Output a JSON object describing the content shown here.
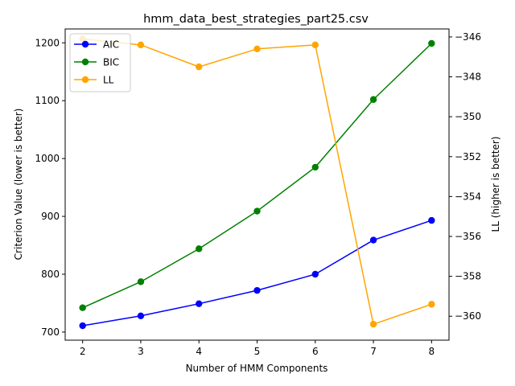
{
  "chart_data": {
    "type": "line",
    "title": "hmm_data_best_strategies_part25.csv",
    "xlabel": "Number of HMM Components",
    "ylabel_left": "Criterion Value (lower is better)",
    "ylabel_right": "LL (higher is better)",
    "x": [
      2,
      3,
      4,
      5,
      6,
      7,
      8
    ],
    "x_ticks": [
      "2",
      "3",
      "4",
      "5",
      "6",
      "7",
      "8"
    ],
    "xlim": [
      1.7,
      8.3
    ],
    "ylim_left": [
      686,
      1224
    ],
    "ylim_right": [
      -361.2,
      -345.6
    ],
    "left_ticks": [
      "700",
      "800",
      "900",
      "1000",
      "1100",
      "1200"
    ],
    "right_ticks": [
      "−346",
      "−348",
      "−350",
      "−352",
      "−354",
      "−356",
      "−358",
      "−360"
    ],
    "grid": false,
    "legend_position": "upper left",
    "series": [
      {
        "name": "AIC",
        "axis": "left",
        "color": "#0000ff",
        "values": [
          711,
          728,
          749,
          772,
          800,
          859,
          893
        ]
      },
      {
        "name": "BIC",
        "axis": "left",
        "color": "#008000",
        "values": [
          742,
          787,
          844,
          909,
          985,
          1102,
          1199
        ]
      },
      {
        "name": "LL",
        "axis": "right",
        "color": "#ffa500",
        "values": [
          -346.1,
          -346.4,
          -347.5,
          -346.6,
          -346.4,
          -360.4,
          -359.4
        ]
      }
    ]
  }
}
